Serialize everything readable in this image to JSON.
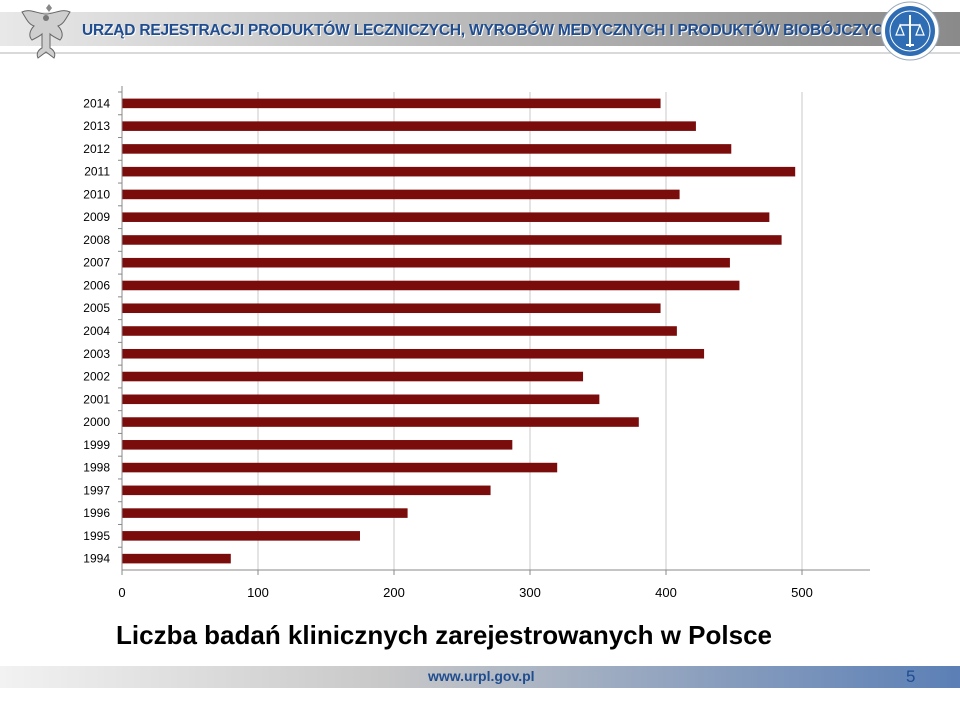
{
  "header": {
    "title": "URZĄD REJESTRACJI PRODUKTÓW LECZNICZYCH, WYROBÓW MEDYCZNYCH I PRODUKTÓW BIOBÓJCZYCH",
    "left_logo_icon": "polish-eagle-icon",
    "right_logo_icon": "office-seal-icon"
  },
  "chart_data": {
    "type": "bar",
    "orientation": "horizontal",
    "categories": [
      "1994",
      "1995",
      "1996",
      "1997",
      "1998",
      "1999",
      "2000",
      "2001",
      "2002",
      "2003",
      "2004",
      "2005",
      "2006",
      "2007",
      "2008",
      "2009",
      "2010",
      "2011",
      "2012",
      "2013",
      "2014"
    ],
    "values": [
      80,
      175,
      210,
      271,
      320,
      287,
      380,
      351,
      339,
      428,
      408,
      396,
      454,
      447,
      485,
      476,
      410,
      495,
      448,
      422,
      396
    ],
    "xticks": [
      "0",
      "100",
      "200",
      "300",
      "400",
      "500"
    ],
    "xlim": [
      0,
      550
    ],
    "grid": true,
    "bar_color": "#7b0c0c",
    "gridline_color": "#c8c8c8"
  },
  "caption": "Liczba badań klinicznych zarejestrowanych w Polsce",
  "footer": {
    "url": "www.urpl.gov.pl",
    "page_number": "5"
  }
}
